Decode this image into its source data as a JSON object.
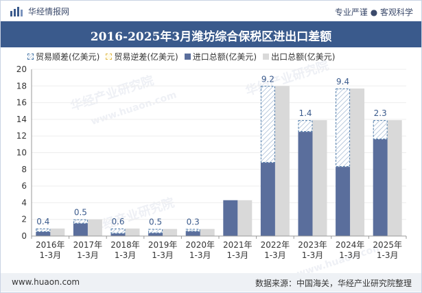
{
  "header": {
    "brand": "华经情报网",
    "slogan": "专业严谨 ● 客观科学"
  },
  "watermarks": [
    "华经产业研究院",
    "华经产业研究院",
    "www.huaon.com",
    "华经产业研究院",
    "www.huaon.com"
  ],
  "chart_data": {
    "type": "bar",
    "title": "2016-2025年3月潍坊综合保税区进出口差额",
    "categories": [
      [
        "2016年",
        "1-3月"
      ],
      [
        "2017年",
        "1-3月"
      ],
      [
        "2018年",
        "1-3月"
      ],
      [
        "2019年",
        "1-3月"
      ],
      [
        "2020年",
        "1-3月"
      ],
      [
        "2021年",
        "1-3月"
      ],
      [
        "2022年",
        "1-3月"
      ],
      [
        "2023年",
        "1-3月"
      ],
      [
        "2024年",
        "1-3月"
      ],
      [
        "2025年",
        "1-3月"
      ]
    ],
    "series": [
      {
        "name": "贸易顺差(亿美元)",
        "values": [
          0.4,
          0.5,
          0.6,
          0.5,
          0.3,
          null,
          9.2,
          1.4,
          9.4,
          2.3
        ]
      },
      {
        "name": "贸易逆差(亿美元)",
        "values": [
          null,
          null,
          null,
          null,
          null,
          null,
          null,
          null,
          null,
          null
        ]
      },
      {
        "name": "进口总额(亿美元)",
        "values": [
          0.5,
          1.5,
          0.3,
          0.35,
          0.55,
          4.3,
          8.8,
          12.5,
          8.3,
          11.6
        ]
      },
      {
        "name": "出口总额(亿美元)",
        "values": [
          0.9,
          2.0,
          0.9,
          0.85,
          0.85,
          4.3,
          18.0,
          13.9,
          17.7,
          13.9
        ]
      }
    ],
    "ylim": [
      0,
      20
    ],
    "yticks": [
      "0",
      "2",
      "4",
      "6",
      "8",
      "10",
      "12",
      "14",
      "16",
      "18",
      "20"
    ],
    "legend_position": "top-left",
    "colors": {
      "import": "#5a6e9c",
      "export": "#d9d9d9",
      "surplus_border": "#4a78a8",
      "label": "#3a5a8c"
    }
  },
  "footer": {
    "website": "www.huaon.com",
    "source": "数据来源：中国海关，华经产业研究院整理"
  }
}
